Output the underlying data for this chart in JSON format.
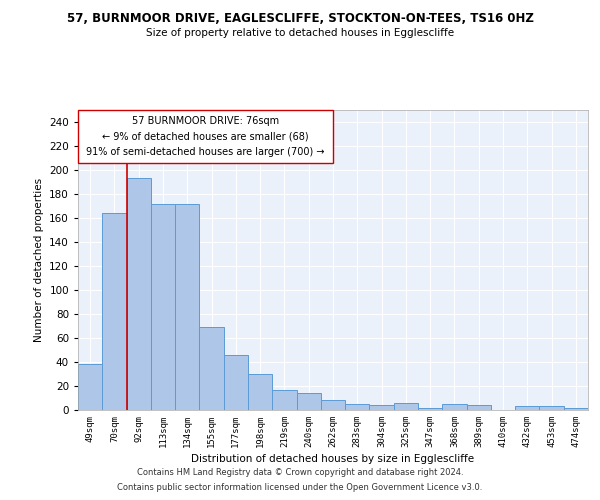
{
  "title1": "57, BURNMOOR DRIVE, EAGLESCLIFFE, STOCKTON-ON-TEES, TS16 0HZ",
  "title2": "Size of property relative to detached houses in Egglescliffe",
  "xlabel": "Distribution of detached houses by size in Egglescliffe",
  "ylabel": "Number of detached properties",
  "footnote1": "Contains HM Land Registry data © Crown copyright and database right 2024.",
  "footnote2": "Contains public sector information licensed under the Open Government Licence v3.0.",
  "bar_labels": [
    "49sqm",
    "70sqm",
    "92sqm",
    "113sqm",
    "134sqm",
    "155sqm",
    "177sqm",
    "198sqm",
    "219sqm",
    "240sqm",
    "262sqm",
    "283sqm",
    "304sqm",
    "325sqm",
    "347sqm",
    "368sqm",
    "389sqm",
    "410sqm",
    "432sqm",
    "453sqm",
    "474sqm"
  ],
  "bar_values": [
    38,
    164,
    193,
    172,
    172,
    69,
    46,
    30,
    17,
    14,
    8,
    5,
    4,
    6,
    2,
    5,
    4,
    0,
    3,
    3,
    2
  ],
  "bar_color": "#aec6e8",
  "bar_edge_color": "#5b9bd5",
  "annotation_line_color": "#cc0000",
  "annotation_box_text": "57 BURNMOOR DRIVE: 76sqm\n← 9% of detached houses are smaller (68)\n91% of semi-detached houses are larger (700) →",
  "ylim": [
    0,
    250
  ],
  "yticks": [
    0,
    20,
    40,
    60,
    80,
    100,
    120,
    140,
    160,
    180,
    200,
    220,
    240
  ],
  "bg_color": "#eaf1fb",
  "grid_color": "#ffffff"
}
